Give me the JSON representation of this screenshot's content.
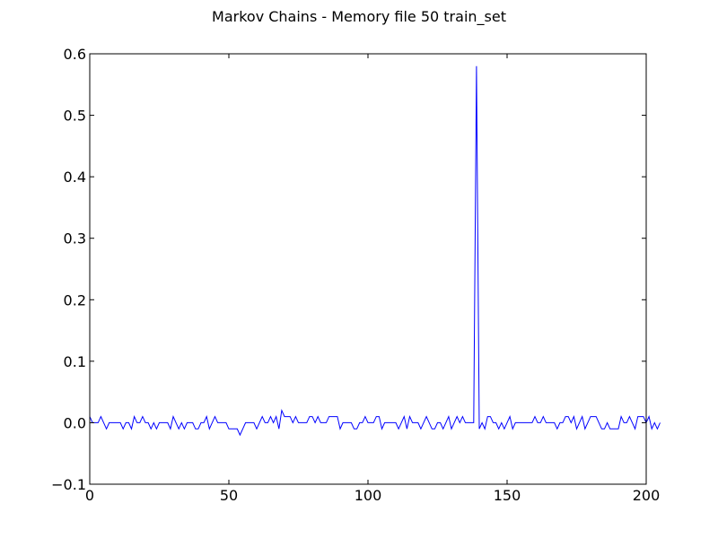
{
  "chart_data": {
    "type": "line",
    "title": "Markov Chains - Memory file 50 train_set",
    "xlabel": "",
    "ylabel": "",
    "xlim": [
      0,
      200
    ],
    "ylim": [
      -0.1,
      0.6
    ],
    "x_ticks": [
      {
        "value": 0,
        "label": "0"
      },
      {
        "value": 50,
        "label": "50"
      },
      {
        "value": 100,
        "label": "100"
      },
      {
        "value": 150,
        "label": "150"
      },
      {
        "value": 200,
        "label": "200"
      }
    ],
    "y_ticks": [
      {
        "value": -0.1,
        "label": "−0.1"
      },
      {
        "value": 0.0,
        "label": "0.0"
      },
      {
        "value": 0.1,
        "label": "0.1"
      },
      {
        "value": 0.2,
        "label": "0.2"
      },
      {
        "value": 0.3,
        "label": "0.3"
      },
      {
        "value": 0.4,
        "label": "0.4"
      },
      {
        "value": 0.5,
        "label": "0.5"
      },
      {
        "value": 0.6,
        "label": "0.6"
      }
    ],
    "grid": false,
    "legend": "none",
    "series": [
      {
        "color": "#0000ff",
        "values": [
          0.01,
          0,
          0,
          0,
          0.01,
          0,
          -0.01,
          0,
          0,
          0,
          0,
          0,
          -0.01,
          0,
          0,
          -0.01,
          0.01,
          0,
          0,
          0.01,
          0,
          0,
          -0.01,
          0,
          -0.01,
          0,
          0,
          0,
          0,
          -0.01,
          0.01,
          0,
          -0.01,
          0,
          -0.01,
          0,
          0,
          0,
          -0.01,
          -0.01,
          0,
          0,
          0.01,
          -0.01,
          0,
          0.01,
          0,
          0,
          0,
          0,
          -0.01,
          -0.01,
          -0.01,
          -0.01,
          -0.02,
          -0.01,
          0,
          0,
          0,
          0,
          -0.01,
          0,
          0.01,
          0,
          0,
          0.01,
          0,
          0.01,
          -0.01,
          0.02,
          0.01,
          0.01,
          0.01,
          0,
          0.01,
          0,
          0,
          0,
          0,
          0.01,
          0.01,
          0,
          0.01,
          0,
          0,
          0,
          0.01,
          0.01,
          0.01,
          0.01,
          -0.01,
          0,
          0,
          0,
          0,
          -0.01,
          -0.01,
          0,
          0,
          0.01,
          0,
          0,
          0,
          0.01,
          0.01,
          -0.01,
          0,
          0,
          0,
          0,
          0,
          -0.01,
          0,
          0.01,
          -0.01,
          0.01,
          0,
          0,
          0,
          -0.01,
          0,
          0.01,
          0,
          -0.01,
          -0.01,
          0,
          0,
          -0.01,
          0,
          0.01,
          -0.01,
          0,
          0.01,
          0,
          0.01,
          0,
          0,
          0,
          0,
          0.58,
          -0.01,
          0,
          -0.01,
          0.01,
          0.01,
          0,
          0,
          -0.01,
          0,
          -0.01,
          0,
          0.01,
          -0.01,
          0,
          0,
          0,
          0,
          0,
          0,
          0,
          0.01,
          0,
          0,
          0.01,
          0,
          0,
          0,
          0,
          -0.01,
          0,
          0,
          0.01,
          0.01,
          0,
          0.01,
          -0.01,
          0,
          0.01,
          -0.01,
          0,
          0.01,
          0.01,
          0.01,
          0,
          -0.01,
          -0.01,
          0,
          -0.01,
          -0.01,
          -0.01,
          -0.01,
          0.01,
          0,
          0,
          0.01,
          0,
          -0.01,
          0.01,
          0.01,
          0.01,
          0,
          0.01,
          -0.01,
          0,
          -0.01,
          0
        ]
      }
    ]
  }
}
